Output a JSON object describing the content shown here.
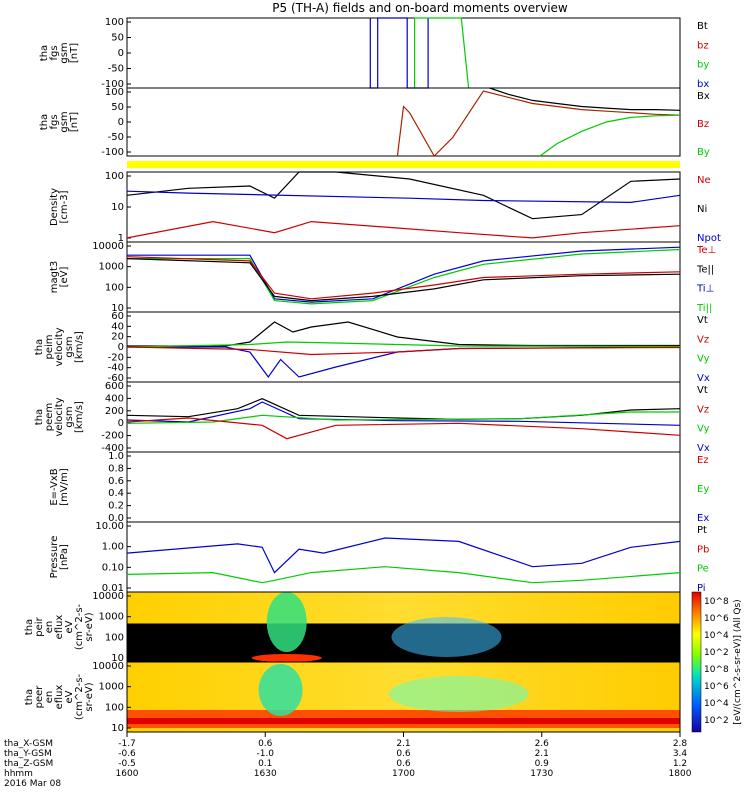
{
  "title": "P5 (TH-A) fields and on-board moments overview",
  "colorbar_label": "[eV/(cm^2-s-sr-eV)] (All Qs)",
  "colorbar_ticks": [
    "10^8",
    "10^6",
    "10^4",
    "10^2",
    "10^8",
    "10^6",
    "10^4",
    "10^2"
  ],
  "footer": {
    "row_labels": [
      "tha_X-GSM",
      "tha_Y-GSM",
      "tha_Z-GSM",
      "hhmm",
      "2016 Mar 08"
    ],
    "columns": [
      [
        "-1.7",
        "-0.6",
        "-0.5",
        "1600"
      ],
      [
        "0.6",
        "-1.0",
        "0.1",
        "1630"
      ],
      [
        "2.1",
        "0.6",
        "0.6",
        "1700"
      ],
      [
        "2.6",
        "2.1",
        "0.9",
        "1730"
      ],
      [
        "2.8",
        "3.4",
        "1.2",
        "1800"
      ]
    ]
  },
  "chart_data": {
    "type": "line",
    "time_range": [
      "1600",
      "1800"
    ],
    "panels": [
      {
        "id": "fgs-full",
        "ylabel": [
          "tha",
          "fgs",
          "gsm",
          "[nT]"
        ],
        "yticks": [
          "100",
          "50",
          "0",
          "-50",
          "-100"
        ],
        "ylim": [
          -100,
          100
        ],
        "legend": [
          {
            "name": "Bt",
            "color": "#000000"
          },
          {
            "name": "bz",
            "color": "#cc0000"
          },
          {
            "name": "by",
            "color": "#00cc00"
          },
          {
            "name": "bx",
            "color": "#0000cc"
          }
        ],
        "series": [
          {
            "name": "bx",
            "color": "#0000cc",
            "x": [
              0.28,
              0.28,
              0.34,
              0.34,
              0.58,
              0.58,
              0.75,
              0.75
            ],
            "y": [
              100,
              -100,
              -100,
              100,
              100,
              -100,
              -100,
              100
            ]
          },
          {
            "name": "by",
            "color": "#00cc00",
            "x": [
              0.64,
              0.64,
              1.02,
              1.08
            ],
            "y": [
              -100,
              100,
              100,
              -100
            ]
          }
        ]
      },
      {
        "id": "fgs-zoom",
        "ylabel": [
          "tha",
          "fgs",
          "gsm",
          "[nT]"
        ],
        "yticks": [
          "100",
          "50",
          "0",
          "-50",
          "-100"
        ],
        "ylim": [
          -120,
          100
        ],
        "legend": [
          {
            "name": "Bx",
            "color": "#000000"
          },
          {
            "name": "Bz",
            "color": "#cc0000"
          },
          {
            "name": "By",
            "color": "#00cc00"
          }
        ],
        "series": [
          {
            "name": "Bx",
            "color": "#000000",
            "x": [
              1.25,
              1.4,
              1.6,
              1.8,
              2.0,
              2.2,
              2.4,
              2.6,
              2.8
            ],
            "y": [
              100,
              80,
              60,
              50,
              40,
              35,
              30,
              30,
              28
            ]
          },
          {
            "name": "Bz",
            "color": "#aa2200",
            "x": [
              0.5,
              0.55,
              0.6,
              0.8,
              0.95,
              1.2,
              1.4,
              1.6,
              1.8,
              2.0,
              2.2,
              2.4,
              2.6,
              2.8
            ],
            "y": [
              -120,
              40,
              20,
              -120,
              -60,
              90,
              70,
              50,
              40,
              30,
              25,
              20,
              15,
              12
            ]
          },
          {
            "name": "By",
            "color": "#00cc00",
            "x": [
              1.66,
              1.8,
              2.0,
              2.2,
              2.4,
              2.6,
              2.8
            ],
            "y": [
              -120,
              -80,
              -40,
              -10,
              5,
              10,
              12
            ]
          }
        ]
      },
      {
        "id": "density",
        "ylabel": [
          "Density",
          "[cm-3]"
        ],
        "yticks": [
          "100",
          "10",
          "1"
        ],
        "ylog": true,
        "ylim": [
          0.2,
          200
        ],
        "legend": [
          {
            "name": "Ne",
            "color": "#cc0000"
          },
          {
            "name": "Ni",
            "color": "#000000"
          },
          {
            "name": "Npot",
            "color": "#0000cc"
          }
        ],
        "series": [
          {
            "name": "Ni",
            "color": "#000000",
            "x": [
              -1.7,
              -1.2,
              -0.7,
              -0.5,
              -0.3,
              0.0,
              0.6,
              1.2,
              1.6,
              2.0,
              2.4,
              2.8
            ],
            "y": [
              20,
              40,
              50,
              15,
              200,
              200,
              100,
              20,
              2,
              3,
              80,
              100
            ]
          },
          {
            "name": "Npot",
            "color": "#0000cc",
            "x": [
              -1.7,
              -1.2,
              0.6,
              1.2,
              2.4,
              2.8
            ],
            "y": [
              30,
              25,
              15,
              12,
              10,
              20
            ]
          },
          {
            "name": "Ne",
            "color": "#cc0000",
            "x": [
              -1.7,
              -1.0,
              -0.5,
              -0.2,
              0.5,
              1.0,
              1.6,
              2.0,
              2.8
            ],
            "y": [
              0.3,
              1.5,
              0.5,
              1.5,
              0.8,
              0.5,
              0.3,
              0.5,
              1.0
            ]
          }
        ]
      },
      {
        "id": "temps",
        "ylabel": [
          "magt3",
          "[eV]"
        ],
        "yticks": [
          "10000",
          "1000",
          "100",
          "10"
        ],
        "ylog": true,
        "ylim": [
          3,
          15000
        ],
        "legend": [
          {
            "name": "Te⊥",
            "color": "#cc0000"
          },
          {
            "name": "Te||",
            "color": "#000000"
          },
          {
            "name": "Ti⊥",
            "color": "#0000cc"
          },
          {
            "name": "Ti||",
            "color": "#00cc00"
          }
        ],
        "series": [
          {
            "name": "Ti⊥",
            "color": "#0000cc",
            "x": [
              -1.7,
              -0.7,
              -0.5,
              -0.2,
              0.3,
              0.8,
              1.2,
              2.0,
              2.8
            ],
            "y": [
              3000,
              3000,
              15,
              10,
              15,
              300,
              1500,
              5000,
              8000
            ]
          },
          {
            "name": "Ti||",
            "color": "#00cc00",
            "x": [
              -1.7,
              -0.7,
              -0.5,
              -0.2,
              0.3,
              0.8,
              1.2,
              2.0,
              2.8
            ],
            "y": [
              2000,
              2000,
              12,
              8,
              12,
              200,
              1000,
              3500,
              6000
            ]
          },
          {
            "name": "Te⊥",
            "color": "#cc0000",
            "x": [
              -1.7,
              -0.7,
              -0.5,
              -0.2,
              0.3,
              0.8,
              1.2,
              2.0,
              2.8
            ],
            "y": [
              2500,
              1500,
              30,
              15,
              30,
              80,
              200,
              300,
              400
            ]
          },
          {
            "name": "Te||",
            "color": "#000000",
            "x": [
              -1.7,
              -0.7,
              -0.5,
              -0.2,
              0.3,
              0.8,
              1.2,
              2.0,
              2.8
            ],
            "y": [
              2000,
              1200,
              20,
              12,
              20,
              50,
              150,
              250,
              300
            ]
          }
        ]
      },
      {
        "id": "peim",
        "ylabel": [
          "tha",
          "peim",
          "velocity",
          "gsm",
          "[km/s]"
        ],
        "yticks": [
          "60",
          "40",
          "20",
          "0",
          "-20",
          "-40",
          "-60"
        ],
        "ylim": [
          -70,
          70
        ],
        "legend": [
          {
            "name": "Vt",
            "color": "#000000"
          },
          {
            "name": "Vz",
            "color": "#cc0000"
          },
          {
            "name": "Vy",
            "color": "#00cc00"
          },
          {
            "name": "Vx",
            "color": "#0000cc"
          }
        ],
        "series": [
          {
            "name": "Vt",
            "color": "#000000",
            "x": [
              -1.7,
              -0.9,
              -0.7,
              -0.5,
              -0.35,
              -0.2,
              0.1,
              0.5,
              1.0,
              1.6,
              2.8
            ],
            "y": [
              2,
              2,
              10,
              50,
              30,
              40,
              50,
              20,
              5,
              3,
              3
            ]
          },
          {
            "name": "Vx",
            "color": "#0000cc",
            "x": [
              -1.7,
              -0.9,
              -0.7,
              -0.55,
              -0.45,
              -0.3,
              0.0,
              0.5,
              1.0,
              2.8
            ],
            "y": [
              0,
              0,
              -10,
              -60,
              -25,
              -60,
              -40,
              -10,
              -3,
              0
            ]
          },
          {
            "name": "Vy",
            "color": "#00cc00",
            "x": [
              -1.7,
              -0.7,
              -0.4,
              0.0,
              0.5,
              1.0,
              2.8
            ],
            "y": [
              0,
              5,
              10,
              8,
              5,
              2,
              1
            ]
          },
          {
            "name": "Vz",
            "color": "#cc0000",
            "x": [
              -1.7,
              -0.7,
              -0.2,
              0.5,
              1.0,
              2.8
            ],
            "y": [
              0,
              -5,
              -15,
              -10,
              -3,
              -1
            ]
          }
        ]
      },
      {
        "id": "peem",
        "ylabel": [
          "tha",
          "peem",
          "velocity",
          "gsm",
          "[km/s]"
        ],
        "yticks": [
          "600",
          "400",
          "200",
          "0",
          "-200",
          "-400"
        ],
        "ylim": [
          -450,
          600
        ],
        "legend": [
          {
            "name": "Vt",
            "color": "#000000"
          },
          {
            "name": "Vz",
            "color": "#cc0000"
          },
          {
            "name": "Vy",
            "color": "#00cc00"
          },
          {
            "name": "Vx",
            "color": "#0000cc"
          }
        ],
        "series": [
          {
            "name": "Vt",
            "color": "#000000",
            "x": [
              -1.7,
              -1.2,
              -0.8,
              -0.6,
              -0.3,
              0.5,
              1.0,
              1.5,
              2.0,
              2.4,
              2.8
            ],
            "y": [
              100,
              80,
              200,
              350,
              100,
              60,
              40,
              50,
              100,
              180,
              200
            ]
          },
          {
            "name": "Vx",
            "color": "#0000cc",
            "x": [
              -1.7,
              -1.2,
              -0.7,
              -0.6,
              -0.3,
              0.5,
              1.5,
              2.8
            ],
            "y": [
              30,
              0,
              200,
              300,
              50,
              20,
              10,
              -50
            ]
          },
          {
            "name": "Vy",
            "color": "#00cc00",
            "x": [
              -1.7,
              -1.0,
              -0.6,
              0.0,
              1.5,
              2.4,
              2.8
            ],
            "y": [
              -20,
              0,
              100,
              30,
              50,
              150,
              150
            ]
          },
          {
            "name": "Vz",
            "color": "#cc0000",
            "x": [
              -1.7,
              -1.2,
              -0.6,
              -0.4,
              0.0,
              1.0,
              2.0,
              2.8
            ],
            "y": [
              0,
              60,
              -50,
              -250,
              -50,
              -20,
              -100,
              -200
            ]
          }
        ]
      },
      {
        "id": "efield",
        "ylabel": [
          "E=-VxB",
          "[mV/m]"
        ],
        "yticks": [
          "1.0",
          "0.8",
          "0.6",
          "0.4",
          "0.2",
          "0.0"
        ],
        "ylim": [
          0,
          1
        ],
        "legend": [
          {
            "name": "Ez",
            "color": "#cc0000"
          },
          {
            "name": "Ey",
            "color": "#00cc00"
          },
          {
            "name": "Ex",
            "color": "#0000cc"
          }
        ],
        "series": []
      },
      {
        "id": "pressure",
        "ylabel": [
          "Pressure",
          "[nPa]"
        ],
        "yticks": [
          "10.00",
          "1.00",
          "0.10",
          "0.01"
        ],
        "ylog": true,
        "ylim": [
          0.005,
          20
        ],
        "legend": [
          {
            "name": "Pt",
            "color": "#000000"
          },
          {
            "name": "Pb",
            "color": "#cc0000"
          },
          {
            "name": "Pe",
            "color": "#00cc00"
          },
          {
            "name": "Pi",
            "color": "#0000cc"
          }
        ],
        "series": [
          {
            "name": "Pi",
            "color": "#0000cc",
            "x": [
              -1.7,
              -0.8,
              -0.6,
              -0.5,
              -0.3,
              -0.1,
              0.4,
              1.0,
              1.6,
              2.0,
              2.4,
              2.8
            ],
            "y": [
              0.5,
              1.5,
              1.0,
              0.05,
              0.8,
              0.5,
              3,
              2,
              0.1,
              0.15,
              1.0,
              2
            ]
          },
          {
            "name": "Pe",
            "color": "#00cc00",
            "x": [
              -1.7,
              -1.0,
              -0.6,
              -0.5,
              -0.2,
              0.4,
              1.0,
              1.6,
              2.0,
              2.8
            ],
            "y": [
              0.04,
              0.05,
              0.015,
              0.02,
              0.05,
              0.1,
              0.05,
              0.015,
              0.02,
              0.05
            ]
          }
        ]
      },
      {
        "id": "peir",
        "ylabel": [
          "tha",
          "peir",
          "en",
          "eflux",
          "eV",
          "(cm^2-s-",
          "sr-eV)"
        ],
        "yticks": [
          "10000",
          "1000",
          "100",
          "10"
        ],
        "type": "heatmap"
      },
      {
        "id": "peer",
        "ylabel": [
          "tha",
          "peer",
          "en",
          "eflux",
          "eV",
          "(cm^2-s-",
          "sr-eV)"
        ],
        "yticks": [
          "10000",
          "1000",
          "100",
          "10"
        ],
        "type": "heatmap"
      }
    ]
  }
}
